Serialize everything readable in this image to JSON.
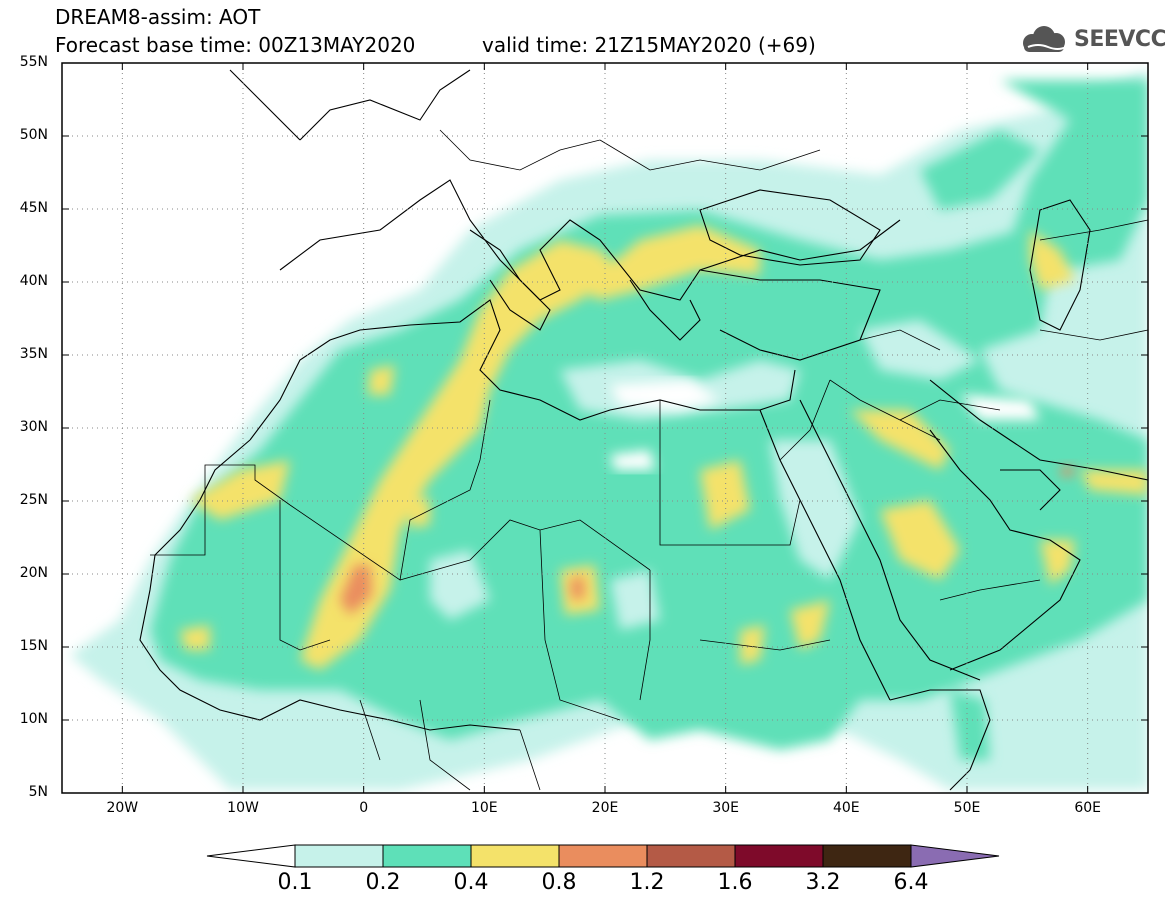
{
  "header": {
    "title": "DREAM8-assim: AOT",
    "base_time": "Forecast base time: 00Z13MAY2020",
    "valid_time": "valid time: 21Z15MAY2020 (+69)"
  },
  "logo": {
    "text": "SEEVCCC",
    "icon": "cloud-icon"
  },
  "map": {
    "lon_range": [
      -25,
      65
    ],
    "lat_range": [
      5,
      55
    ],
    "lat_labels": [
      "55N",
      "50N",
      "45N",
      "40N",
      "35N",
      "30N",
      "25N",
      "20N",
      "15N",
      "10N",
      "5N"
    ],
    "lat_values": [
      55,
      50,
      45,
      40,
      35,
      30,
      25,
      20,
      15,
      10,
      5
    ],
    "lon_labels": [
      "20W",
      "10W",
      "0",
      "10E",
      "20E",
      "30E",
      "40E",
      "50E",
      "60E"
    ],
    "lon_values": [
      -20,
      -10,
      0,
      10,
      20,
      30,
      40,
      50,
      60
    ],
    "grid": "dotted"
  },
  "colorbar": {
    "labels": [
      "0.1",
      "0.2",
      "0.4",
      "0.8",
      "1.2",
      "1.6",
      "3.2",
      "6.4"
    ],
    "colors": [
      "#ffffff",
      "#c6f2ea",
      "#5ee0b8",
      "#f4e26a",
      "#ea8d5e",
      "#b45a46",
      "#7e0a2a",
      "#3e2612",
      "#8a6cb2"
    ]
  }
}
